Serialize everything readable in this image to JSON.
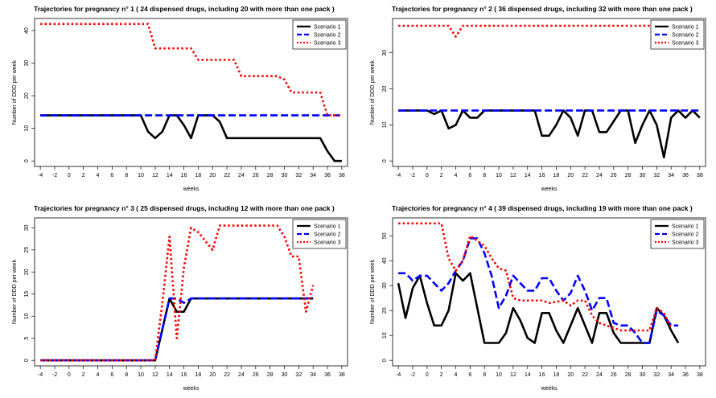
{
  "x_ticks": [
    -4,
    -2,
    0,
    2,
    4,
    6,
    8,
    10,
    12,
    14,
    16,
    18,
    20,
    22,
    24,
    26,
    28,
    30,
    32,
    34,
    36,
    38
  ],
  "chart_data": [
    {
      "type": "line",
      "title": "Trajectories for pregnancy n° 1 ( 24 dispensed drugs, including 20 with more than one pack )",
      "xlabel": "weeks",
      "ylabel": "Number of DDD per week",
      "xlim": [
        -4,
        38
      ],
      "ylim": [
        0,
        42
      ],
      "y_ticks": [
        0,
        10,
        20,
        30,
        40
      ],
      "legend": "top-right",
      "series": [
        {
          "name": "Scenario 1",
          "color": "#000000",
          "dash": "solid",
          "points": [
            [
              -4,
              14
            ],
            [
              10,
              14
            ],
            [
              11,
              9
            ],
            [
              12,
              7
            ],
            [
              13,
              9
            ],
            [
              14,
              14
            ],
            [
              15,
              14
            ],
            [
              16,
              11
            ],
            [
              17,
              7
            ],
            [
              18,
              14
            ],
            [
              20,
              14
            ],
            [
              21,
              12
            ],
            [
              22,
              7
            ],
            [
              35,
              7
            ],
            [
              36,
              3
            ],
            [
              37,
              0
            ],
            [
              38,
              0
            ]
          ]
        },
        {
          "name": "Scenario 2",
          "color": "#0000ff",
          "dash": "dashed",
          "points": [
            [
              -4,
              14
            ],
            [
              38,
              14
            ]
          ]
        },
        {
          "name": "Scenario 3",
          "color": "#ff0000",
          "dash": "dotted",
          "points": [
            [
              -4,
              42
            ],
            [
              10,
              42
            ],
            [
              11,
              42
            ],
            [
              12,
              34.5
            ],
            [
              17,
              34.5
            ],
            [
              18,
              31
            ],
            [
              23,
              31
            ],
            [
              24,
              26
            ],
            [
              29,
              26
            ],
            [
              30,
              25
            ],
            [
              31,
              21
            ],
            [
              35,
              21
            ],
            [
              36,
              14
            ],
            [
              38,
              14
            ]
          ]
        }
      ]
    },
    {
      "type": "line",
      "title": "Trajectories for pregnancy n° 2 ( 36 dispensed drugs, including 32 with more than one pack )",
      "xlabel": "weeks",
      "ylabel": "Number of DDD per week",
      "xlim": [
        -4,
        38
      ],
      "ylim": [
        0,
        38
      ],
      "y_ticks": [
        0,
        10,
        20,
        30
      ],
      "legend": "top-right",
      "series": [
        {
          "name": "Scenario 1",
          "color": "#000000",
          "dash": "solid",
          "points": [
            [
              -4,
              14
            ],
            [
              0,
              14
            ],
            [
              1,
              13
            ],
            [
              2,
              14
            ],
            [
              3,
              9
            ],
            [
              4,
              10
            ],
            [
              5,
              14
            ],
            [
              6,
              12
            ],
            [
              7,
              12
            ],
            [
              8,
              14
            ],
            [
              15,
              14
            ],
            [
              16,
              7
            ],
            [
              17,
              7
            ],
            [
              18,
              10
            ],
            [
              19,
              14
            ],
            [
              20,
              12
            ],
            [
              21,
              7
            ],
            [
              22,
              14
            ],
            [
              23,
              14
            ],
            [
              24,
              8
            ],
            [
              25,
              8
            ],
            [
              26,
              11
            ],
            [
              27,
              14
            ],
            [
              28,
              14
            ],
            [
              29,
              5
            ],
            [
              30,
              10
            ],
            [
              31,
              14
            ],
            [
              32,
              10
            ],
            [
              33,
              1
            ],
            [
              34,
              12
            ],
            [
              35,
              14
            ],
            [
              36,
              12
            ],
            [
              37,
              14
            ],
            [
              38,
              12
            ]
          ]
        },
        {
          "name": "Scenario 2",
          "color": "#0000ff",
          "dash": "dashed",
          "points": [
            [
              -4,
              14
            ],
            [
              38,
              14
            ]
          ]
        },
        {
          "name": "Scenario 3",
          "color": "#ff0000",
          "dash": "dotted",
          "points": [
            [
              -4,
              37.5
            ],
            [
              3,
              37.5
            ],
            [
              4,
              34.5
            ],
            [
              5,
              37.5
            ],
            [
              38,
              37.5
            ]
          ]
        }
      ]
    },
    {
      "type": "line",
      "title": "Trajectories for pregnancy n° 3 ( 25 dispensed drugs, including 12 with more than one pack )",
      "xlabel": "weeks",
      "ylabel": "Number of DDD per week",
      "xlim": [
        -4,
        38
      ],
      "ylim": [
        0,
        31
      ],
      "y_ticks": [
        0,
        5,
        10,
        15,
        20,
        25,
        30
      ],
      "legend": "top-right",
      "series": [
        {
          "name": "Scenario 1",
          "color": "#000000",
          "dash": "solid",
          "points": [
            [
              -4,
              0
            ],
            [
              12,
              0
            ],
            [
              14,
              14
            ],
            [
              15,
              11
            ],
            [
              16,
              11
            ],
            [
              17,
              14
            ],
            [
              34,
              14
            ]
          ]
        },
        {
          "name": "Scenario 2",
          "color": "#0000ff",
          "dash": "dashed",
          "points": [
            [
              -4,
              0
            ],
            [
              12,
              0
            ],
            [
              14,
              14
            ],
            [
              15,
              14
            ],
            [
              16,
              13
            ],
            [
              17,
              14
            ],
            [
              34,
              14
            ]
          ]
        },
        {
          "name": "Scenario 3",
          "color": "#ff0000",
          "dash": "dotted",
          "points": [
            [
              -4,
              0
            ],
            [
              12,
              0
            ],
            [
              13,
              13
            ],
            [
              14,
              28
            ],
            [
              15,
              5
            ],
            [
              16,
              21
            ],
            [
              17,
              30
            ],
            [
              18,
              29
            ],
            [
              19,
              27
            ],
            [
              20,
              25
            ],
            [
              21,
              30.5
            ],
            [
              29,
              30.5
            ],
            [
              30,
              28
            ],
            [
              31,
              23.5
            ],
            [
              32,
              23.5
            ],
            [
              33,
              11
            ],
            [
              34,
              17
            ]
          ]
        }
      ]
    },
    {
      "type": "line",
      "title": "Trajectories for pregnancy n° 4 ( 39 dispensed drugs, including 19 with more than one pack )",
      "xlabel": "weeks",
      "ylabel": "Number of DDD per week",
      "xlim": [
        -4,
        38
      ],
      "ylim": [
        0,
        55
      ],
      "y_ticks": [
        0,
        10,
        20,
        30,
        40,
        50
      ],
      "legend": "top-right",
      "series": [
        {
          "name": "Scenario 1",
          "color": "#000000",
          "dash": "solid",
          "points": [
            [
              -4,
              31
            ],
            [
              -3,
              17
            ],
            [
              -2,
              29
            ],
            [
              -1,
              34
            ],
            [
              0,
              23
            ],
            [
              1,
              14
            ],
            [
              2,
              14
            ],
            [
              3,
              20
            ],
            [
              4,
              35
            ],
            [
              5,
              32
            ],
            [
              6,
              35
            ],
            [
              7,
              21
            ],
            [
              8,
              7
            ],
            [
              9,
              7
            ],
            [
              10,
              7
            ],
            [
              11,
              11
            ],
            [
              12,
              21
            ],
            [
              13,
              16
            ],
            [
              14,
              9
            ],
            [
              15,
              7
            ],
            [
              16,
              19
            ],
            [
              17,
              19
            ],
            [
              18,
              12
            ],
            [
              19,
              7
            ],
            [
              20,
              14
            ],
            [
              21,
              21
            ],
            [
              22,
              14
            ],
            [
              23,
              7
            ],
            [
              24,
              19
            ],
            [
              25,
              19
            ],
            [
              26,
              11
            ],
            [
              27,
              7
            ],
            [
              31,
              7
            ],
            [
              32,
              21
            ],
            [
              33,
              18
            ],
            [
              34,
              12
            ],
            [
              35,
              7
            ]
          ]
        },
        {
          "name": "Scenario 2",
          "color": "#0000ff",
          "dash": "dashed",
          "points": [
            [
              -4,
              35
            ],
            [
              -3,
              35
            ],
            [
              -2,
              32
            ],
            [
              -1,
              34
            ],
            [
              0,
              34
            ],
            [
              1,
              31
            ],
            [
              2,
              28
            ],
            [
              3,
              31
            ],
            [
              4,
              36
            ],
            [
              5,
              40
            ],
            [
              6,
              49
            ],
            [
              7,
              49
            ],
            [
              8,
              43
            ],
            [
              9,
              34
            ],
            [
              10,
              21
            ],
            [
              11,
              26
            ],
            [
              12,
              34
            ],
            [
              13,
              31
            ],
            [
              14,
              28
            ],
            [
              15,
              28
            ],
            [
              16,
              33
            ],
            [
              17,
              33
            ],
            [
              18,
              28
            ],
            [
              19,
              24
            ],
            [
              20,
              27
            ],
            [
              21,
              34
            ],
            [
              22,
              28
            ],
            [
              23,
              20
            ],
            [
              24,
              25
            ],
            [
              25,
              25
            ],
            [
              26,
              15
            ],
            [
              27,
              14
            ],
            [
              28,
              14
            ],
            [
              29,
              11
            ],
            [
              30,
              7
            ],
            [
              31,
              7
            ],
            [
              32,
              20
            ],
            [
              33,
              18
            ],
            [
              34,
              14
            ],
            [
              35,
              14
            ]
          ]
        },
        {
          "name": "Scenario 3",
          "color": "#ff0000",
          "dash": "dotted",
          "points": [
            [
              -4,
              55
            ],
            [
              2,
              55
            ],
            [
              3,
              41
            ],
            [
              4,
              36
            ],
            [
              5,
              40
            ],
            [
              6,
              50
            ],
            [
              7,
              48
            ],
            [
              8,
              46
            ],
            [
              9,
              41
            ],
            [
              10,
              37
            ],
            [
              11,
              36
            ],
            [
              12,
              25
            ],
            [
              13,
              24
            ],
            [
              16,
              24
            ],
            [
              17,
              23
            ],
            [
              19,
              24
            ],
            [
              20,
              22
            ],
            [
              21,
              24
            ],
            [
              22,
              24
            ],
            [
              23,
              18
            ],
            [
              24,
              15
            ],
            [
              25,
              14
            ],
            [
              26,
              13
            ],
            [
              27,
              12
            ],
            [
              31,
              12
            ],
            [
              32,
              21
            ],
            [
              33,
              19
            ],
            [
              34,
              13
            ]
          ]
        }
      ]
    }
  ]
}
